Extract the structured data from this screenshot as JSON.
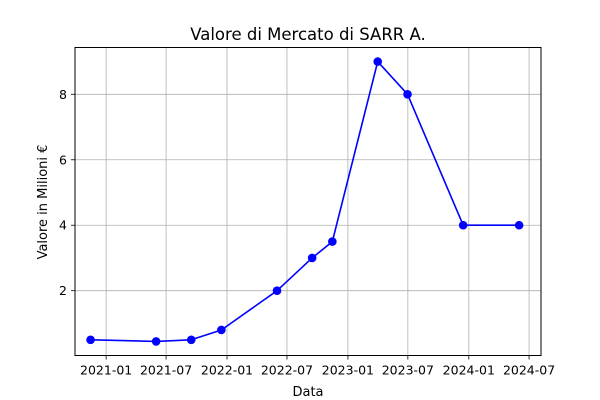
{
  "chart_data": {
    "type": "line",
    "title": "Valore di Mercato di SARR A.",
    "xlabel": "Data",
    "ylabel": "Valore in Milioni €",
    "x_ticks": [
      "2021-01",
      "2021-07",
      "2022-01",
      "2022-07",
      "2023-01",
      "2023-07",
      "2024-01",
      "2024-07"
    ],
    "y_ticks": [
      2,
      4,
      6,
      8
    ],
    "xlim": [
      "2020-09-29",
      "2024-08-06"
    ],
    "ylim": [
      0.02,
      9.43
    ],
    "grid": true,
    "series": [
      {
        "color": "#0000ff",
        "marker": "circle",
        "points": [
          {
            "x": "2020-11-15",
            "y": 0.5
          },
          {
            "x": "2021-06-01",
            "y": 0.45
          },
          {
            "x": "2021-09-15",
            "y": 0.5
          },
          {
            "x": "2021-12-15",
            "y": 0.8
          },
          {
            "x": "2022-06-01",
            "y": 2.0
          },
          {
            "x": "2022-09-15",
            "y": 3.0
          },
          {
            "x": "2022-11-15",
            "y": 3.5
          },
          {
            "x": "2023-04-01",
            "y": 9.0
          },
          {
            "x": "2023-06-30",
            "y": 8.0
          },
          {
            "x": "2023-12-15",
            "y": 4.0
          },
          {
            "x": "2024-06-01",
            "y": 4.0
          }
        ]
      }
    ]
  }
}
